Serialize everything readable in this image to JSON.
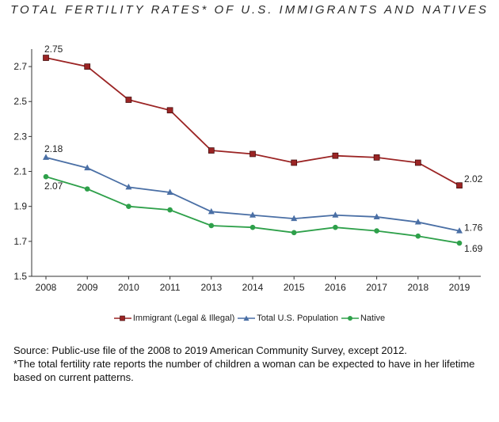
{
  "title": "TOTAL FERTILITY RATES* OF U.S. IMMIGRANTS AND NATIVES",
  "source_line": "Source: Public-use file of the 2008 to 2019 American Community Survey, except 2012.",
  "footnote": "*The total fertility rate reports the number of children a woman can be expected to have in her lifetime based on current patterns.",
  "chart_data": {
    "type": "line",
    "categories": [
      "2008",
      "2009",
      "2010",
      "2011",
      "2013",
      "2014",
      "2015",
      "2016",
      "2017",
      "2018",
      "2019"
    ],
    "ylim": [
      1.5,
      2.8
    ],
    "yticks": [
      "1.5",
      "1.7",
      "1.9",
      "2.1",
      "2.3",
      "2.5",
      "2.7"
    ],
    "ytick_values": [
      1.5,
      1.7,
      1.9,
      2.1,
      2.3,
      2.5,
      2.7
    ],
    "legend_position": "bottom",
    "grid": false,
    "series": [
      {
        "name": "Immigrant (Legal & Illegal)",
        "color": "#9b2424",
        "marker": "square",
        "values": [
          2.75,
          2.7,
          2.51,
          2.45,
          2.22,
          2.2,
          2.15,
          2.19,
          2.18,
          2.15,
          2.02
        ],
        "labels": [
          {
            "index": 0,
            "text": "2.75"
          },
          {
            "index": 10,
            "text": "2.02"
          }
        ]
      },
      {
        "name": "Total U.S. Population",
        "color": "#4a6fa5",
        "marker": "triangle",
        "values": [
          2.18,
          2.12,
          2.01,
          1.98,
          1.87,
          1.85,
          1.83,
          1.85,
          1.84,
          1.81,
          1.76
        ],
        "labels": [
          {
            "index": 0,
            "text": "2.18"
          },
          {
            "index": 10,
            "text": "1.76"
          }
        ]
      },
      {
        "name": "Native",
        "color": "#2ea04a",
        "marker": "circle",
        "values": [
          2.07,
          2.0,
          1.9,
          1.88,
          1.79,
          1.78,
          1.75,
          1.78,
          1.76,
          1.73,
          1.69
        ],
        "labels": [
          {
            "index": 0,
            "text": "2.07"
          },
          {
            "index": 10,
            "text": "1.69"
          }
        ]
      }
    ]
  }
}
